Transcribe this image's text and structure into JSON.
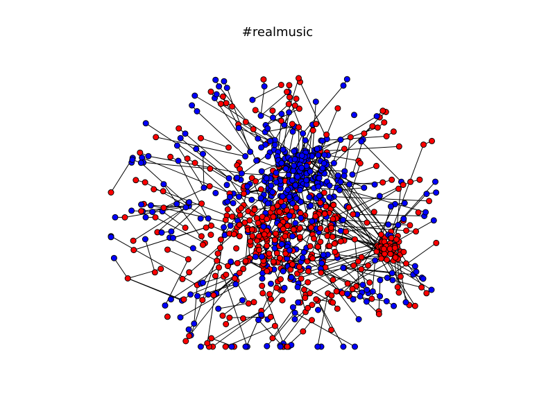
{
  "title": "#realmusic",
  "colors": {
    "background": "#ffffff",
    "edge": "#000000",
    "node_stroke": "#000000",
    "group_a": "#0000ff",
    "group_b": "#ff0000"
  },
  "graph": {
    "type": "network",
    "node_groups": [
      "group_a",
      "group_b"
    ],
    "clusters": [
      {
        "name": "main-component",
        "dominant_groups": [
          "group_a",
          "group_b"
        ]
      },
      {
        "name": "dense-red-clique",
        "dominant_groups": [
          "group_b"
        ]
      }
    ]
  }
}
